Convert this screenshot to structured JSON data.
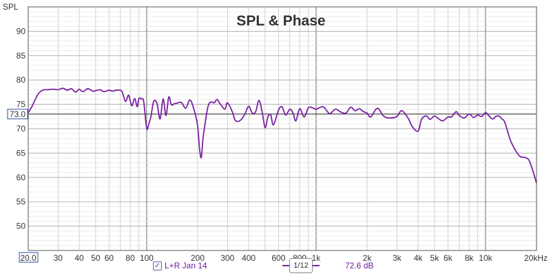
{
  "chart_data": {
    "type": "line",
    "title": "SPL & Phase",
    "ylabel": "SPL",
    "xscale": "log",
    "xlim": [
      20,
      20000
    ],
    "ylim": [
      45,
      95
    ],
    "ytick_values": [
      50,
      55,
      60,
      65,
      70,
      75,
      80,
      85,
      90
    ],
    "ytick_labels": [
      "50",
      "55",
      "60",
      "65",
      "70",
      "75",
      "80",
      "85",
      "90"
    ],
    "xtick_values": [
      20,
      30,
      40,
      50,
      60,
      80,
      100,
      200,
      300,
      400,
      600,
      800,
      1000,
      2000,
      3000,
      4000,
      5000,
      6000,
      8000,
      10000,
      20000
    ],
    "xtick_labels": [
      "20.0",
      "30",
      "40",
      "50",
      "60",
      "80",
      "100",
      "200",
      "300",
      "400",
      "600",
      "800",
      "1k",
      "2k",
      "3k",
      "4k",
      "5k",
      "6k",
      "8k",
      "10k",
      "20kHz"
    ],
    "reference_line": {
      "value": 73.0,
      "label": "73.0"
    },
    "series": [
      {
        "name": "L+R Jan 14",
        "color": "#7b1fa2",
        "x": [
          20,
          21,
          22,
          23,
          24,
          25,
          26,
          28,
          30,
          32,
          34,
          36,
          38,
          40,
          42,
          45,
          48,
          50,
          53,
          56,
          60,
          63,
          66,
          70,
          72,
          75,
          78,
          80,
          82,
          85,
          88,
          90,
          93,
          96,
          100,
          103,
          106,
          110,
          115,
          120,
          125,
          130,
          135,
          140,
          145,
          150,
          160,
          170,
          180,
          190,
          200,
          205,
          210,
          215,
          220,
          230,
          240,
          250,
          260,
          270,
          280,
          290,
          300,
          320,
          330,
          340,
          360,
          380,
          400,
          420,
          440,
          460,
          480,
          500,
          520,
          540,
          560,
          600,
          630,
          660,
          700,
          730,
          760,
          800,
          850,
          900,
          950,
          1000,
          1100,
          1200,
          1300,
          1400,
          1500,
          1600,
          1700,
          1800,
          1900,
          2000,
          2100,
          2300,
          2500,
          2700,
          3000,
          3200,
          3500,
          3700,
          4000,
          4200,
          4500,
          4700,
          5000,
          5300,
          5600,
          6000,
          6300,
          6700,
          7000,
          7500,
          8000,
          8500,
          9000,
          9500,
          10000,
          10500,
          11000,
          11500,
          12000,
          12500,
          13000,
          14000,
          15000,
          16000,
          17000,
          18000,
          19000,
          20000
        ],
        "y": [
          73.3,
          74.5,
          76,
          77.2,
          77.8,
          78,
          78,
          78.1,
          78,
          78.3,
          77.9,
          78.2,
          77.5,
          78.1,
          77.6,
          78.2,
          77.7,
          77.8,
          78,
          77.6,
          77.9,
          77.7,
          77.9,
          77.9,
          77.4,
          75.6,
          76.9,
          75.7,
          74.7,
          76.2,
          74.5,
          76.2,
          76.1,
          75.6,
          70.1,
          71,
          72.5,
          75.6,
          75.2,
          72,
          76.1,
          72.7,
          76.5,
          74.9,
          75.1,
          75.2,
          75.4,
          74.2,
          75.9,
          74,
          70.5,
          66,
          64.1,
          68,
          70.5,
          74.5,
          75.5,
          75.3,
          76,
          75.2,
          74.5,
          74,
          75.3,
          73.5,
          72,
          71.5,
          71.8,
          73,
          74.6,
          73.2,
          73.5,
          75.8,
          73.5,
          70.2,
          72.5,
          72.8,
          70.8,
          73.8,
          74.5,
          72.8,
          74,
          73.2,
          71.6,
          74.1,
          72.4,
          74.3,
          74.3,
          74,
          74.5,
          73.1,
          74,
          73.4,
          73.2,
          74.4,
          73.7,
          74.1,
          73.5,
          73.2,
          72.4,
          74.2,
          72.6,
          72.2,
          72.5,
          73.7,
          72.1,
          70.4,
          69.5,
          72,
          72.6,
          71.9,
          72.6,
          72,
          71.6,
          72.4,
          72.4,
          73.5,
          72.7,
          72.2,
          73,
          72.3,
          72.8,
          72.5,
          73.3,
          72.6,
          72,
          72.5,
          72.6,
          72,
          71.3,
          67.7,
          65.6,
          64.3,
          64.1,
          63.6,
          61.4,
          58.8
        ]
      }
    ]
  },
  "legend": {
    "checkbox_mark": "✓",
    "series_label": "L+R Jan 14",
    "smoothing_label": "1/12",
    "level_value": "72.6 dB"
  }
}
